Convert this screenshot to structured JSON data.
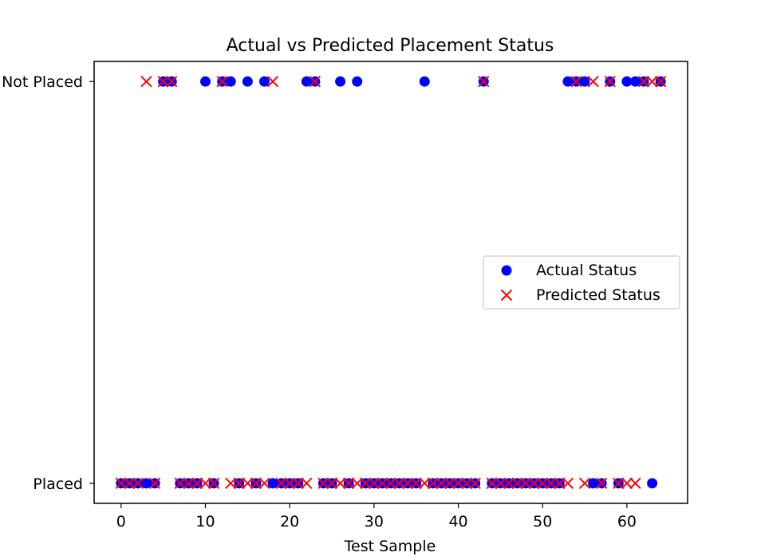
{
  "chart_data": {
    "type": "scatter",
    "title": "Actual vs Predicted Placement Status",
    "xlabel": "Test Sample",
    "ylabel": "",
    "xlim": [
      -3.2,
      67.2
    ],
    "ylim": [
      -0.05,
      1.05
    ],
    "xticks": [
      0,
      10,
      20,
      30,
      40,
      50,
      60
    ],
    "yticks": [
      {
        "value": 0,
        "label": "Placed"
      },
      {
        "value": 1,
        "label": "Not Placed"
      }
    ],
    "grid": false,
    "legend_position": "center-right",
    "series": [
      {
        "name": "Actual Status",
        "marker": "circle",
        "color": "#0000ff",
        "x": [
          0,
          1,
          2,
          3,
          4,
          5,
          6,
          7,
          8,
          9,
          10,
          11,
          12,
          13,
          14,
          15,
          16,
          17,
          18,
          19,
          20,
          21,
          22,
          23,
          24,
          25,
          26,
          27,
          28,
          29,
          30,
          31,
          32,
          33,
          34,
          35,
          36,
          37,
          38,
          39,
          40,
          41,
          42,
          43,
          44,
          45,
          46,
          47,
          48,
          49,
          50,
          51,
          52,
          53,
          54,
          55,
          56,
          57,
          58,
          59,
          60,
          61,
          62,
          63,
          64
        ],
        "y": [
          0,
          0,
          0,
          0,
          0,
          1,
          1,
          0,
          0,
          0,
          1,
          0,
          1,
          1,
          0,
          1,
          0,
          1,
          0,
          0,
          0,
          0,
          1,
          1,
          0,
          0,
          1,
          0,
          1,
          0,
          0,
          0,
          0,
          0,
          0,
          0,
          1,
          0,
          0,
          0,
          0,
          0,
          0,
          1,
          0,
          0,
          0,
          0,
          0,
          0,
          0,
          0,
          0,
          1,
          1,
          1,
          0,
          0,
          1,
          0,
          1,
          1,
          1,
          0,
          1
        ]
      },
      {
        "name": "Predicted Status",
        "marker": "x",
        "color": "#ff0000",
        "x": [
          0,
          1,
          2,
          3,
          4,
          5,
          6,
          7,
          8,
          9,
          10,
          11,
          12,
          13,
          14,
          15,
          16,
          17,
          18,
          19,
          20,
          21,
          22,
          23,
          24,
          25,
          26,
          27,
          28,
          29,
          30,
          31,
          32,
          33,
          34,
          35,
          36,
          37,
          38,
          39,
          40,
          41,
          42,
          43,
          44,
          45,
          46,
          47,
          48,
          49,
          50,
          51,
          52,
          53,
          54,
          55,
          56,
          57,
          58,
          59,
          60,
          61,
          62,
          63,
          64
        ],
        "y": [
          0,
          0,
          0,
          1,
          0,
          1,
          1,
          0,
          0,
          0,
          0,
          0,
          1,
          0,
          0,
          0,
          0,
          0,
          1,
          0,
          0,
          0,
          0,
          1,
          0,
          0,
          0,
          0,
          0,
          0,
          0,
          0,
          0,
          0,
          0,
          0,
          0,
          0,
          0,
          0,
          0,
          0,
          0,
          1,
          0,
          0,
          0,
          0,
          0,
          0,
          0,
          0,
          0,
          0,
          1,
          0,
          1,
          0,
          1,
          0,
          0,
          0,
          1,
          1,
          1
        ]
      }
    ]
  }
}
